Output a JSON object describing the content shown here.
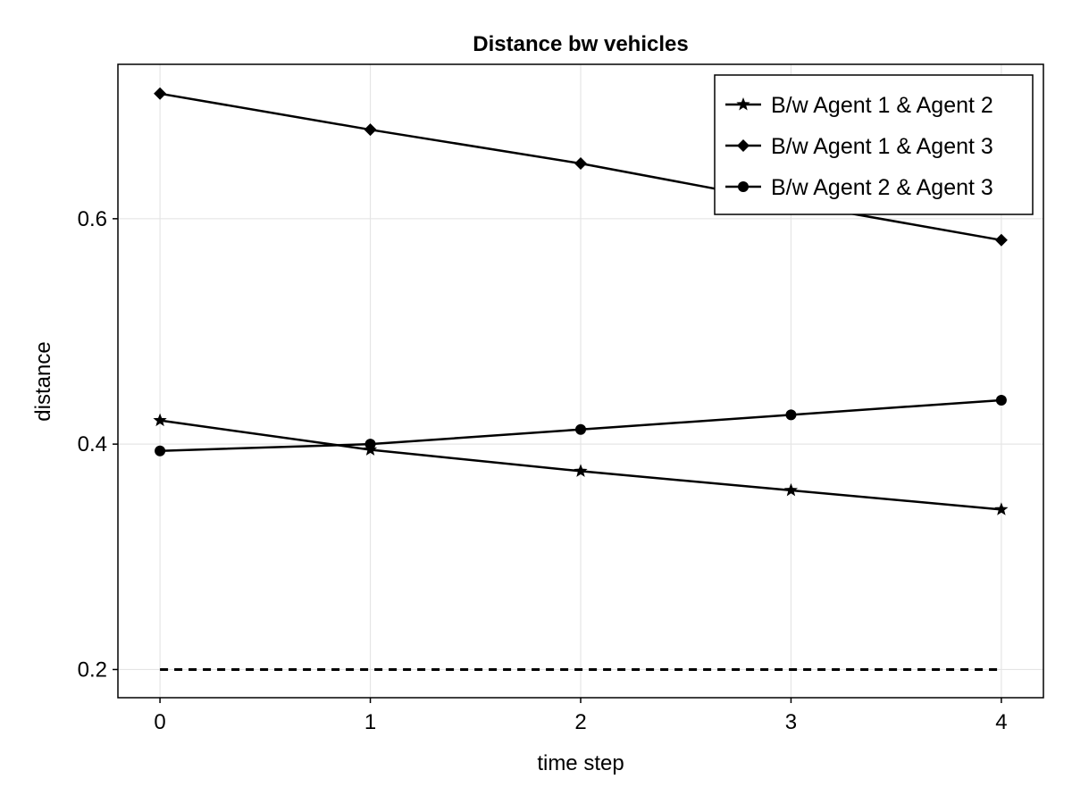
{
  "chart_data": {
    "type": "line",
    "title": "Distance bw vehicles",
    "xlabel": "time step",
    "ylabel": "distance",
    "x": [
      0,
      1,
      2,
      3,
      4
    ],
    "xticks": [
      0,
      1,
      2,
      3,
      4
    ],
    "yticks": [
      0.2,
      0.4,
      0.6
    ],
    "xlim": [
      -0.2,
      4.2
    ],
    "ylim": [
      0.175,
      0.737
    ],
    "grid": true,
    "legend_position": "top-right",
    "series": [
      {
        "name": "B/w Agent 1 & Agent 2",
        "marker": "star",
        "values": [
          0.421,
          0.395,
          0.376,
          0.359,
          0.342
        ]
      },
      {
        "name": "B/w Agent 1 & Agent 3",
        "marker": "diamond",
        "values": [
          0.711,
          0.679,
          0.649,
          0.614,
          0.581
        ]
      },
      {
        "name": "B/w Agent 2 & Agent 3",
        "marker": "circle",
        "values": [
          0.394,
          0.4,
          0.413,
          0.426,
          0.439
        ]
      }
    ],
    "reference_line": {
      "style": "dashed",
      "values": [
        0.2,
        0.2,
        0.2,
        0.2,
        0.2
      ]
    },
    "colors": {
      "line": "#000000",
      "grid": "#e5e5e5"
    }
  }
}
